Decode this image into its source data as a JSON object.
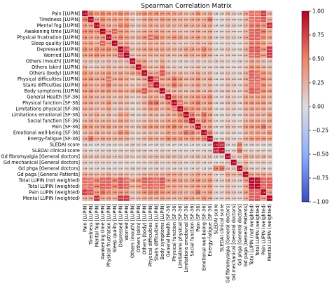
{
  "chart_data": {
    "type": "heatmap",
    "title": "Spearman Correlation Matrix",
    "labels": [
      "Pain [LUPIN]",
      "Tiredness [LUPIN]",
      "Mental fog [LUPIN]",
      "Awakening time [LUPIN]",
      "Physical frustration [LUPIN]",
      "Sleep quality [LUPIN]",
      "Depressed [LUPIN]",
      "Worried [LUPIN]",
      "Others (mouth) [LUPIN]",
      "Others (skin) [LUPIN]",
      "Others (body) [LUPIN]",
      "Physical difficulties [LUPIN]",
      "Stairs difficulties [LUPIN]",
      "Body symptoms [LUPIN]",
      "General Health [SF-36]",
      "Physical function [SF-36]",
      "Limitations physical [SF-36]",
      "Limitations emotional [SF-36]",
      "Social function [SF-36]",
      "Pain [SF-36]",
      "Emotional well-being [SF-36]",
      "Energy-fatigue [SF-36]",
      "SLEDAI score",
      "SLEDAI clinical score",
      "Gd fibromyalgia [General doctors]",
      "Gd mechanical [General doctors]",
      "Gd phga [General doctors]",
      "Gd paga [General Patients]",
      "Total LUPIN (not weighted)",
      "Total LUPIN (weighted)",
      "Pain LUPIN (weighted)",
      "Mental LUPIN (weighted)"
    ],
    "matrix": [
      [
        1.0,
        0.56,
        0.45,
        0.53,
        0.48,
        0.39,
        0.52,
        0.44,
        0.19,
        0.34,
        0.5,
        0.47,
        0.48,
        0.44,
        0.41,
        0.39,
        0.34,
        0.25,
        0.26,
        0.5,
        0.26,
        0.33,
        0.08,
        0.09,
        0.26,
        0.16,
        0.09,
        0.36,
        0.65,
        0.61,
        0.82,
        0.3
      ],
      [
        0.56,
        1.0,
        0.4,
        0.54,
        0.39,
        0.45,
        0.42,
        0.45,
        0.19,
        0.14,
        0.38,
        0.49,
        0.33,
        0.48,
        0.39,
        0.36,
        0.32,
        0.27,
        0.36,
        0.41,
        0.33,
        0.58,
        0.01,
        0.06,
        0.22,
        0.09,
        0.06,
        0.29,
        0.62,
        0.64,
        0.72,
        0.32
      ],
      [
        0.45,
        0.4,
        1.0,
        0.49,
        0.39,
        0.29,
        0.52,
        0.53,
        0.19,
        0.2,
        0.33,
        0.36,
        0.3,
        0.37,
        0.3,
        0.27,
        0.27,
        0.34,
        0.32,
        0.33,
        0.38,
        0.33,
        0.04,
        0.05,
        0.2,
        0.14,
        0.04,
        0.27,
        0.55,
        0.56,
        0.45,
        0.85
      ],
      [
        0.53,
        0.54,
        0.49,
        1.0,
        0.48,
        0.67,
        0.48,
        0.45,
        0.16,
        0.23,
        0.38,
        0.41,
        0.4,
        0.41,
        0.29,
        0.31,
        0.24,
        0.2,
        0.28,
        0.38,
        0.26,
        0.38,
        0.05,
        0.07,
        0.19,
        0.08,
        0.04,
        0.27,
        0.67,
        0.69,
        0.58,
        0.37
      ],
      [
        0.48,
        0.39,
        0.39,
        0.48,
        1.0,
        0.39,
        0.54,
        0.43,
        0.24,
        0.33,
        0.46,
        0.64,
        0.56,
        0.47,
        0.34,
        0.49,
        0.42,
        0.28,
        0.34,
        0.45,
        0.3,
        0.34,
        0.06,
        0.09,
        0.22,
        0.13,
        0.06,
        0.34,
        0.69,
        0.68,
        0.51,
        0.38
      ],
      [
        0.39,
        0.45,
        0.29,
        0.67,
        0.39,
        1.0,
        0.38,
        0.38,
        0.16,
        0.21,
        0.29,
        0.33,
        0.29,
        0.32,
        0.21,
        0.2,
        0.15,
        0.14,
        0.21,
        0.3,
        0.23,
        0.3,
        0.03,
        0.05,
        0.14,
        0.05,
        0.02,
        0.2,
        0.55,
        0.55,
        0.45,
        0.29
      ],
      [
        0.52,
        0.42,
        0.52,
        0.48,
        0.54,
        0.38,
        1.0,
        0.74,
        0.22,
        0.29,
        0.4,
        0.45,
        0.36,
        0.41,
        0.33,
        0.29,
        0.28,
        0.41,
        0.43,
        0.35,
        0.54,
        0.35,
        0.07,
        0.08,
        0.21,
        0.1,
        0.05,
        0.3,
        0.72,
        0.73,
        0.46,
        0.83
      ],
      [
        0.44,
        0.45,
        0.53,
        0.45,
        0.43,
        0.38,
        0.74,
        1.0,
        0.21,
        0.25,
        0.34,
        0.37,
        0.31,
        0.37,
        0.29,
        0.24,
        0.25,
        0.37,
        0.37,
        0.3,
        0.5,
        0.34,
        0.06,
        0.07,
        0.19,
        0.09,
        0.05,
        0.27,
        0.64,
        0.67,
        0.42,
        0.82
      ],
      [
        0.19,
        0.19,
        0.19,
        0.16,
        0.24,
        0.16,
        0.22,
        0.21,
        1.0,
        0.39,
        0.4,
        0.18,
        0.16,
        0.34,
        0.12,
        0.1,
        0.09,
        0.08,
        0.11,
        0.15,
        0.1,
        0.13,
        0.09,
        0.1,
        0.11,
        0.03,
        0.08,
        0.14,
        0.38,
        0.33,
        0.18,
        0.18
      ],
      [
        0.34,
        0.14,
        0.2,
        0.23,
        0.33,
        0.21,
        0.29,
        0.25,
        0.39,
        1.0,
        0.51,
        0.26,
        0.23,
        0.5,
        0.17,
        0.17,
        0.13,
        0.1,
        0.14,
        0.22,
        0.12,
        0.15,
        0.07,
        0.08,
        0.12,
        0.05,
        0.07,
        0.18,
        0.5,
        0.44,
        0.28,
        0.22
      ],
      [
        0.5,
        0.38,
        0.33,
        0.38,
        0.46,
        0.29,
        0.4,
        0.34,
        0.4,
        0.51,
        1.0,
        0.4,
        0.37,
        0.73,
        0.3,
        0.31,
        0.26,
        0.19,
        0.24,
        0.36,
        0.2,
        0.27,
        0.06,
        0.08,
        0.21,
        0.1,
        0.06,
        0.29,
        0.7,
        0.63,
        0.49,
        0.33
      ],
      [
        0.47,
        0.49,
        0.36,
        0.41,
        0.64,
        0.33,
        0.45,
        0.37,
        0.18,
        0.26,
        0.4,
        1.0,
        0.68,
        0.43,
        0.4,
        0.58,
        0.48,
        0.28,
        0.34,
        0.46,
        0.27,
        0.4,
        0.04,
        0.06,
        0.23,
        0.15,
        0.05,
        0.34,
        0.68,
        0.66,
        0.53,
        0.35
      ],
      [
        0.48,
        0.33,
        0.3,
        0.4,
        0.56,
        0.29,
        0.36,
        0.31,
        0.16,
        0.23,
        0.37,
        0.68,
        1.0,
        0.4,
        0.37,
        0.6,
        0.44,
        0.24,
        0.29,
        0.44,
        0.22,
        0.33,
        0.05,
        0.07,
        0.24,
        0.18,
        0.06,
        0.33,
        0.63,
        0.61,
        0.52,
        0.29
      ],
      [
        0.44,
        0.48,
        0.37,
        0.41,
        0.47,
        0.32,
        0.41,
        0.37,
        0.34,
        0.5,
        0.73,
        0.43,
        0.4,
        1.0,
        0.32,
        0.31,
        0.27,
        0.21,
        0.26,
        0.36,
        0.23,
        0.32,
        0.07,
        0.09,
        0.22,
        0.1,
        0.07,
        0.3,
        0.73,
        0.68,
        0.5,
        0.38
      ],
      [
        0.41,
        0.39,
        0.3,
        0.29,
        0.34,
        0.21,
        0.33,
        0.29,
        0.12,
        0.17,
        0.3,
        0.4,
        0.37,
        0.32,
        1.0,
        0.52,
        0.44,
        0.32,
        0.42,
        0.5,
        0.44,
        0.52,
        0.05,
        0.07,
        0.25,
        0.13,
        0.07,
        0.4,
        0.4,
        0.4,
        0.43,
        0.3
      ],
      [
        0.39,
        0.36,
        0.27,
        0.31,
        0.49,
        0.2,
        0.29,
        0.24,
        0.1,
        0.17,
        0.31,
        0.58,
        0.6,
        0.31,
        0.52,
        1.0,
        0.62,
        0.33,
        0.45,
        0.56,
        0.33,
        0.46,
        0.04,
        0.06,
        0.24,
        0.18,
        0.06,
        0.39,
        0.45,
        0.43,
        0.42,
        0.26
      ],
      [
        0.34,
        0.32,
        0.27,
        0.24,
        0.42,
        0.15,
        0.28,
        0.25,
        0.09,
        0.13,
        0.26,
        0.48,
        0.44,
        0.27,
        0.44,
        0.62,
        1.0,
        0.53,
        0.51,
        0.48,
        0.36,
        0.44,
        0.04,
        0.05,
        0.21,
        0.15,
        0.05,
        0.35,
        0.38,
        0.37,
        0.35,
        0.27
      ],
      [
        0.25,
        0.27,
        0.34,
        0.2,
        0.28,
        0.14,
        0.41,
        0.37,
        0.08,
        0.1,
        0.19,
        0.28,
        0.24,
        0.21,
        0.32,
        0.33,
        0.53,
        1.0,
        0.56,
        0.32,
        0.59,
        0.38,
        0.03,
        0.04,
        0.14,
        0.08,
        0.03,
        0.25,
        0.32,
        0.33,
        0.27,
        0.4
      ],
      [
        0.26,
        0.36,
        0.32,
        0.28,
        0.34,
        0.21,
        0.43,
        0.37,
        0.11,
        0.14,
        0.24,
        0.34,
        0.29,
        0.26,
        0.42,
        0.45,
        0.51,
        0.56,
        1.0,
        0.43,
        0.56,
        0.47,
        0.04,
        0.05,
        0.18,
        0.1,
        0.04,
        0.3,
        0.38,
        0.39,
        0.31,
        0.39
      ],
      [
        0.5,
        0.41,
        0.33,
        0.38,
        0.45,
        0.3,
        0.35,
        0.3,
        0.15,
        0.22,
        0.36,
        0.46,
        0.44,
        0.36,
        0.5,
        0.56,
        0.48,
        0.32,
        0.43,
        1.0,
        0.36,
        0.43,
        0.05,
        0.07,
        0.27,
        0.17,
        0.07,
        0.44,
        0.48,
        0.46,
        0.58,
        0.31
      ],
      [
        0.26,
        0.33,
        0.38,
        0.26,
        0.3,
        0.23,
        0.54,
        0.5,
        0.1,
        0.12,
        0.2,
        0.27,
        0.22,
        0.23,
        0.44,
        0.33,
        0.36,
        0.59,
        0.56,
        0.36,
        1.0,
        0.55,
        0.03,
        0.05,
        0.18,
        0.08,
        0.03,
        0.28,
        0.37,
        0.39,
        0.3,
        0.5
      ],
      [
        0.33,
        0.58,
        0.33,
        0.38,
        0.34,
        0.3,
        0.35,
        0.34,
        0.13,
        0.15,
        0.27,
        0.4,
        0.33,
        0.32,
        0.52,
        0.46,
        0.44,
        0.38,
        0.47,
        0.43,
        0.55,
        1.0,
        0.04,
        0.06,
        0.21,
        0.1,
        0.04,
        0.33,
        0.45,
        0.47,
        0.45,
        0.36
      ],
      [
        0.08,
        0.01,
        0.04,
        0.05,
        0.06,
        0.03,
        0.07,
        0.06,
        0.09,
        0.07,
        0.06,
        0.04,
        0.05,
        0.07,
        0.05,
        0.04,
        0.04,
        0.03,
        0.04,
        0.05,
        0.03,
        0.04,
        1.0,
        0.87,
        0.06,
        0.03,
        0.54,
        0.06,
        0.08,
        0.07,
        0.05,
        0.06
      ],
      [
        0.09,
        0.06,
        0.05,
        0.07,
        0.09,
        0.05,
        0.08,
        0.07,
        0.1,
        0.08,
        0.08,
        0.06,
        0.07,
        0.09,
        0.07,
        0.06,
        0.05,
        0.04,
        0.05,
        0.07,
        0.05,
        0.06,
        0.87,
        1.0,
        0.07,
        0.04,
        0.58,
        0.07,
        0.1,
        0.09,
        0.07,
        0.07
      ],
      [
        0.26,
        0.22,
        0.2,
        0.19,
        0.22,
        0.14,
        0.21,
        0.19,
        0.11,
        0.12,
        0.21,
        0.23,
        0.24,
        0.22,
        0.25,
        0.24,
        0.21,
        0.14,
        0.18,
        0.27,
        0.18,
        0.21,
        0.06,
        0.07,
        1.0,
        0.17,
        0.16,
        0.43,
        0.28,
        0.27,
        0.28,
        0.2
      ],
      [
        0.16,
        0.09,
        0.14,
        0.08,
        0.13,
        0.05,
        0.1,
        0.09,
        0.03,
        0.05,
        0.1,
        0.15,
        0.18,
        0.1,
        0.13,
        0.18,
        0.15,
        0.08,
        0.1,
        0.17,
        0.08,
        0.1,
        0.03,
        0.04,
        0.17,
        1.0,
        0.11,
        0.29,
        0.15,
        0.14,
        0.16,
        0.1
      ],
      [
        0.09,
        0.06,
        0.04,
        0.04,
        0.06,
        0.02,
        0.05,
        0.05,
        0.08,
        0.07,
        0.06,
        0.05,
        0.06,
        0.07,
        0.07,
        0.06,
        0.05,
        0.03,
        0.04,
        0.07,
        0.03,
        0.04,
        0.54,
        0.58,
        0.16,
        0.11,
        1.0,
        0.29,
        0.08,
        0.07,
        0.08,
        0.05
      ],
      [
        0.36,
        0.29,
        0.27,
        0.27,
        0.34,
        0.2,
        0.3,
        0.27,
        0.14,
        0.18,
        0.29,
        0.34,
        0.33,
        0.3,
        0.4,
        0.39,
        0.35,
        0.25,
        0.3,
        0.44,
        0.28,
        0.33,
        0.06,
        0.07,
        0.43,
        0.29,
        0.29,
        1.0,
        0.4,
        0.38,
        0.4,
        0.3
      ],
      [
        0.65,
        0.62,
        0.55,
        0.67,
        0.69,
        0.55,
        0.72,
        0.64,
        0.38,
        0.5,
        0.7,
        0.68,
        0.63,
        0.73,
        0.4,
        0.45,
        0.38,
        0.32,
        0.38,
        0.48,
        0.37,
        0.45,
        0.08,
        0.1,
        0.28,
        0.15,
        0.08,
        0.4,
        1.0,
        0.97,
        0.69,
        0.69
      ],
      [
        0.61,
        0.64,
        0.56,
        0.69,
        0.68,
        0.55,
        0.73,
        0.67,
        0.33,
        0.44,
        0.63,
        0.66,
        0.61,
        0.68,
        0.4,
        0.43,
        0.37,
        0.33,
        0.39,
        0.46,
        0.39,
        0.47,
        0.07,
        0.09,
        0.27,
        0.14,
        0.07,
        0.38,
        0.97,
        1.0,
        0.67,
        0.71
      ],
      [
        0.82,
        0.72,
        0.45,
        0.58,
        0.51,
        0.45,
        0.46,
        0.42,
        0.18,
        0.28,
        0.49,
        0.53,
        0.52,
        0.5,
        0.43,
        0.42,
        0.35,
        0.27,
        0.31,
        0.58,
        0.3,
        0.45,
        0.05,
        0.07,
        0.28,
        0.16,
        0.08,
        0.4,
        0.69,
        0.67,
        1.0,
        0.38
      ],
      [
        0.3,
        0.32,
        0.85,
        0.37,
        0.38,
        0.29,
        0.83,
        0.82,
        0.18,
        0.22,
        0.33,
        0.35,
        0.29,
        0.38,
        0.3,
        0.26,
        0.27,
        0.4,
        0.39,
        0.31,
        0.5,
        0.36,
        0.06,
        0.07,
        0.2,
        0.1,
        0.05,
        0.3,
        0.69,
        0.71,
        0.38,
        1.0
      ]
    ],
    "vmin": -1.0,
    "vmax": 1.0,
    "colormap": "coolwarm",
    "colorbar_ticks": [
      "1.00",
      "0.75",
      "0.50",
      "0.25",
      "0.00",
      "−0.25",
      "−0.50",
      "−0.75",
      "−1.00"
    ],
    "grid": true,
    "annotated": true
  }
}
